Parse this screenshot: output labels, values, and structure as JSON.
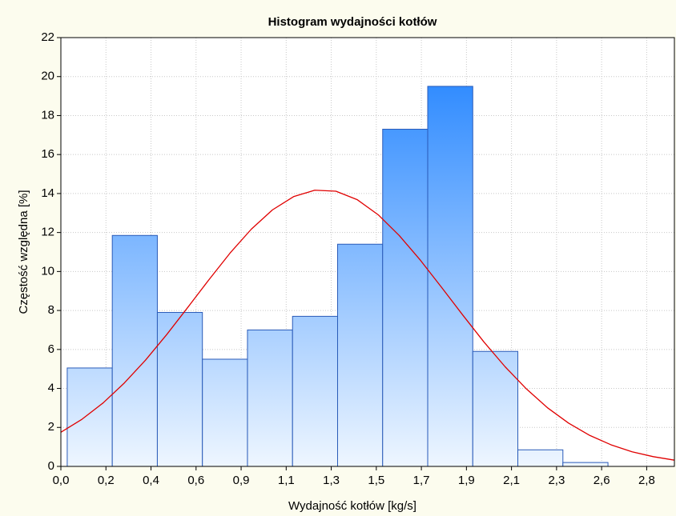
{
  "chart_data": {
    "type": "histogram",
    "title": "Histogram wydajności kotłów",
    "xlabel": "Wydajność kotłów [kg/s]",
    "ylabel": "Częstość względna [%]",
    "bins": [
      0.03,
      0.243,
      0.456,
      0.669,
      0.882,
      1.095,
      1.308,
      1.521,
      1.734,
      1.947,
      2.16,
      2.373,
      2.586
    ],
    "values": [
      5.05,
      11.85,
      7.9,
      5.5,
      7.0,
      7.7,
      11.4,
      17.3,
      19.5,
      5.9,
      0.85,
      0.2
    ],
    "color": "#1a7fff",
    "edgecolor": "#2a5bb8",
    "curve": {
      "color": "#e00000",
      "x": [
        0,
        0.1,
        0.2,
        0.3,
        0.4,
        0.5,
        0.6,
        0.7,
        0.8,
        0.9,
        1.0,
        1.1,
        1.2,
        1.3,
        1.4,
        1.5,
        1.6,
        1.7,
        1.8,
        1.9,
        2.0,
        2.1,
        2.2,
        2.3,
        2.4,
        2.5,
        2.6,
        2.7,
        2.8,
        2.9
      ],
      "values": [
        1.75,
        2.42,
        3.26,
        4.28,
        5.45,
        6.76,
        8.16,
        9.58,
        10.95,
        12.17,
        13.16,
        13.84,
        14.17,
        14.12,
        13.69,
        12.91,
        11.84,
        10.57,
        9.18,
        7.76,
        6.38,
        5.11,
        3.98,
        3.01,
        2.22,
        1.59,
        1.11,
        0.75,
        0.5,
        0.32
      ]
    },
    "xlim": [
      0,
      2.9
    ],
    "ylim": [
      0,
      22
    ],
    "xticks": [
      {
        "value": 0,
        "label": "0,0"
      },
      {
        "value": 0.213,
        "label": "0,2"
      },
      {
        "value": 0.426,
        "label": "0,4"
      },
      {
        "value": 0.639,
        "label": "0,6"
      },
      {
        "value": 0.852,
        "label": "0,9"
      },
      {
        "value": 1.065,
        "label": "1,1"
      },
      {
        "value": 1.278,
        "label": "1,3"
      },
      {
        "value": 1.491,
        "label": "1,5"
      },
      {
        "value": 1.704,
        "label": "1,7"
      },
      {
        "value": 1.917,
        "label": "1,9"
      },
      {
        "value": 2.13,
        "label": "2,1"
      },
      {
        "value": 2.343,
        "label": "2,3"
      },
      {
        "value": 2.556,
        "label": "2,6"
      },
      {
        "value": 2.769,
        "label": "2,8"
      }
    ],
    "yticks": [
      0,
      2,
      4,
      6,
      8,
      10,
      12,
      14,
      16,
      18,
      20,
      22
    ],
    "grid": true
  }
}
